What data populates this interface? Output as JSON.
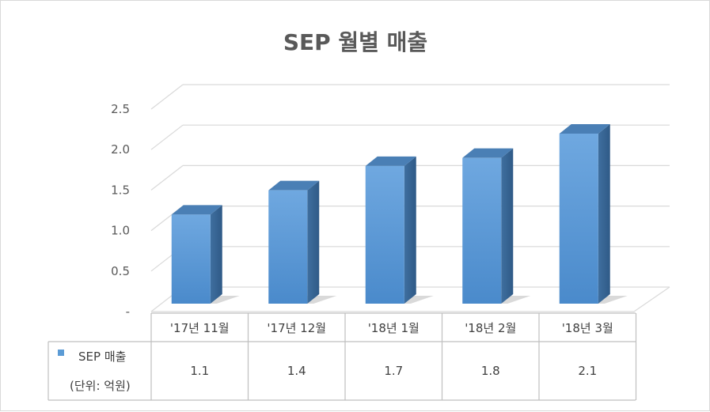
{
  "chart_data": {
    "type": "bar",
    "title": "SEP 월별 매출",
    "categories": [
      "'17년 11월",
      "'17년 12월",
      "'18년 1월",
      "'18년 2월",
      "'18년 3월"
    ],
    "series": [
      {
        "name": "SEP 매출",
        "values": [
          1.1,
          1.4,
          1.7,
          1.8,
          2.1
        ]
      }
    ],
    "data_table": {
      "legend_label": "SEP 매출",
      "unit_note": "(단위: 억원)",
      "cells": [
        "1.1",
        "1.4",
        "1.7",
        "1.8",
        "2.1"
      ]
    },
    "y_ticks": [
      "-",
      "0.5",
      "1.0",
      "1.5",
      "2.0",
      "2.5"
    ],
    "ylim": [
      0,
      2.5
    ],
    "grid": true,
    "legend": "data-table",
    "colors": {
      "bar_front": "#5b9bd5",
      "bar_side": "#3a6a99",
      "bar_top": "#4a7fb5",
      "grid": "#d9d9d9",
      "text": "#595959"
    }
  }
}
